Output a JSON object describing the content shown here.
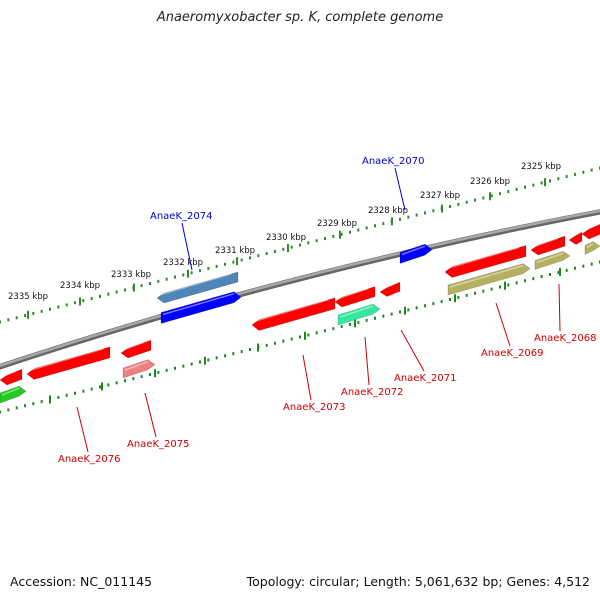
{
  "title": "Anaeromyxobacter sp. K, complete genome",
  "footer": {
    "accession": "Accession: NC_011145",
    "topology": "Topology: circular; Length: 5,061,632 bp; Genes: 4,512"
  },
  "colors": {
    "backbone": "#8a8a8a",
    "tick_outer": "#2e8b2e",
    "tick_inner": "#1a8a1a",
    "label_blue": "#0000cc",
    "label_red": "#cc0000",
    "gene_red": "#ff0000",
    "gene_blue": "#0000ff",
    "gene_steel": "#4f86b8",
    "gene_olive": "#b5b060",
    "gene_green": "#22cc22",
    "gene_mint": "#33e8a0",
    "gene_pink": "#f08080"
  },
  "tick_labels": [
    "2325 kbp",
    "2326 kbp",
    "2327 kbp",
    "2328 kbp",
    "2329 kbp",
    "2330 kbp",
    "2331 kbp",
    "2332 kbp",
    "2333 kbp",
    "2334 kbp",
    "2335 kbp"
  ],
  "gene_labels": [
    {
      "text": "AnaeK_2070",
      "color": "blue"
    },
    {
      "text": "AnaeK_2074",
      "color": "blue"
    },
    {
      "text": "AnaeK_2068",
      "color": "red"
    },
    {
      "text": "AnaeK_2069",
      "color": "red"
    },
    {
      "text": "AnaeK_2071",
      "color": "red"
    },
    {
      "text": "AnaeK_2072",
      "color": "red"
    },
    {
      "text": "AnaeK_2073",
      "color": "red"
    },
    {
      "text": "AnaeK_2075",
      "color": "red"
    },
    {
      "text": "AnaeK_2076",
      "color": "red"
    }
  ]
}
